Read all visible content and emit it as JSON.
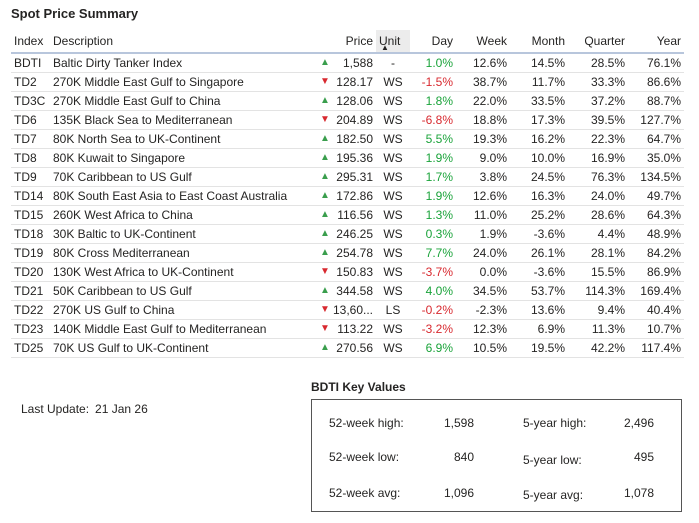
{
  "page": {
    "title": "Spot Price Summary"
  },
  "table": {
    "columns": [
      "Index",
      "Description",
      "Price",
      "Unit",
      "Day",
      "Week",
      "Month",
      "Quarter",
      "Year"
    ],
    "sorted_column": "Unit",
    "colors": {
      "up": "#3a9e4d",
      "down": "#d8292f",
      "day_up": "#1aa33a",
      "header_rule": "#b8c6dc"
    },
    "rows": [
      [
        "BDTI",
        "Baltic Dirty Tanker Index",
        "up",
        "1,588",
        "-",
        "1.0%",
        "12.6%",
        "14.5%",
        "28.5%",
        "76.1%"
      ],
      [
        "TD2",
        "270K Middle East Gulf to Singapore",
        "down",
        "128.17",
        "WS",
        "-1.5%",
        "38.7%",
        "11.7%",
        "33.3%",
        "86.6%"
      ],
      [
        "TD3C",
        "270K Middle East Gulf to China",
        "up",
        "128.06",
        "WS",
        "1.8%",
        "22.0%",
        "33.5%",
        "37.2%",
        "88.7%"
      ],
      [
        "TD6",
        "135K Black Sea to Mediterranean",
        "down",
        "204.89",
        "WS",
        "-6.8%",
        "18.8%",
        "17.3%",
        "39.5%",
        "127.7%"
      ],
      [
        "TD7",
        "80K North Sea to UK-Continent",
        "up",
        "182.50",
        "WS",
        "5.5%",
        "19.3%",
        "16.2%",
        "22.3%",
        "64.7%"
      ],
      [
        "TD8",
        "80K Kuwait to Singapore",
        "up",
        "195.36",
        "WS",
        "1.9%",
        "9.0%",
        "10.0%",
        "16.9%",
        "35.0%"
      ],
      [
        "TD9",
        "70K Caribbean to US Gulf",
        "up",
        "295.31",
        "WS",
        "1.7%",
        "3.8%",
        "24.5%",
        "76.3%",
        "134.5%"
      ],
      [
        "TD14",
        "80K South East Asia to East Coast Australia",
        "up",
        "172.86",
        "WS",
        "1.9%",
        "12.6%",
        "16.3%",
        "24.0%",
        "49.7%"
      ],
      [
        "TD15",
        "260K West Africa to China",
        "up",
        "116.56",
        "WS",
        "1.3%",
        "11.0%",
        "25.2%",
        "28.6%",
        "64.3%"
      ],
      [
        "TD18",
        "30K Baltic to UK-Continent",
        "up",
        "246.25",
        "WS",
        "0.3%",
        "1.9%",
        "-3.6%",
        "4.4%",
        "48.9%"
      ],
      [
        "TD19",
        "80K Cross Mediterranean",
        "up",
        "254.78",
        "WS",
        "7.7%",
        "24.0%",
        "26.1%",
        "28.1%",
        "84.2%"
      ],
      [
        "TD20",
        "130K West Africa to UK-Continent",
        "down",
        "150.83",
        "WS",
        "-3.7%",
        "0.0%",
        "-3.6%",
        "15.5%",
        "86.9%"
      ],
      [
        "TD21",
        "50K Caribbean to US Gulf",
        "up",
        "344.58",
        "WS",
        "4.0%",
        "34.5%",
        "53.7%",
        "114.3%",
        "169.4%"
      ],
      [
        "TD22",
        "270K US Gulf to China",
        "down",
        "13,60...",
        "LS",
        "-0.2%",
        "-2.3%",
        "13.6%",
        "9.4%",
        "40.4%"
      ],
      [
        "TD23",
        "140K Middle East Gulf to Mediterranean",
        "down",
        "113.22",
        "WS",
        "-3.2%",
        "12.3%",
        "6.9%",
        "11.3%",
        "10.7%"
      ],
      [
        "TD25",
        "70K US Gulf to UK-Continent",
        "up",
        "270.56",
        "WS",
        "6.9%",
        "10.5%",
        "19.5%",
        "42.2%",
        "117.4%"
      ]
    ]
  },
  "last_update": {
    "label": "Last Update:",
    "value": "21 Jan 26"
  },
  "key_values": {
    "title": "BDTI Key Values",
    "week52_high_label": "52-week high:",
    "week52_high": "1,598",
    "week52_low_label": "52-week low:",
    "week52_low": "840",
    "week52_avg_label": "52-week avg:",
    "week52_avg": "1,096",
    "year5_high_label": "5-year high:",
    "year5_high": "2,496",
    "year5_low_label": "5-year low:",
    "year5_low": "495",
    "year5_avg_label": "5-year avg:",
    "year5_avg": "1,078"
  }
}
